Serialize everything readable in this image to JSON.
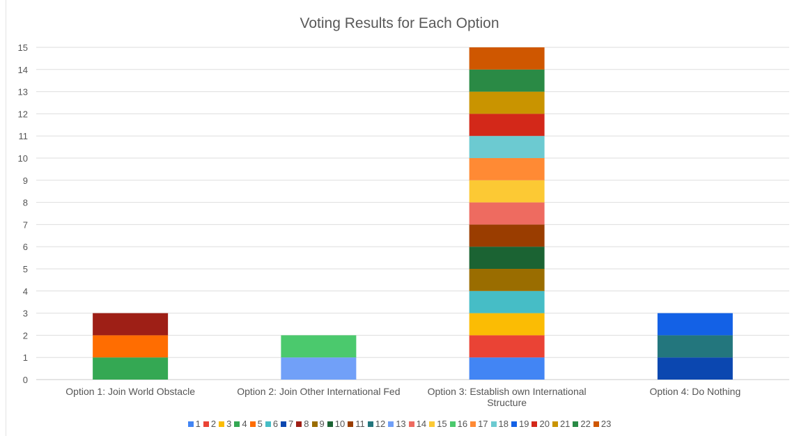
{
  "chart_data": {
    "type": "bar",
    "stacked": true,
    "title": "Voting Results for Each Option",
    "xlabel": "",
    "ylabel": "",
    "ylim": [
      0,
      15
    ],
    "yticks": [
      0,
      1,
      2,
      3,
      4,
      5,
      6,
      7,
      8,
      9,
      10,
      11,
      12,
      13,
      14,
      15
    ],
    "grid": true,
    "legend_position": "bottom",
    "categories": [
      [
        "Option 1:  Join World Obstacle"
      ],
      [
        "Option 2: Join Other International Fed"
      ],
      [
        "Option 3:  Establish own International",
        "Structure"
      ],
      [
        "Option 4:  Do Nothing"
      ]
    ],
    "series": [
      {
        "name": "1",
        "color": "#4285f4",
        "values": [
          0,
          0,
          1,
          0
        ]
      },
      {
        "name": "2",
        "color": "#ea4335",
        "values": [
          0,
          0,
          1,
          0
        ]
      },
      {
        "name": "3",
        "color": "#fbbc04",
        "values": [
          0,
          0,
          1,
          0
        ]
      },
      {
        "name": "4",
        "color": "#34a853",
        "values": [
          1,
          0,
          0,
          0
        ]
      },
      {
        "name": "5",
        "color": "#ff6d01",
        "values": [
          1,
          0,
          0,
          0
        ]
      },
      {
        "name": "6",
        "color": "#46bdc6",
        "values": [
          0,
          0,
          1,
          0
        ]
      },
      {
        "name": "7",
        "color": "#0b47b0",
        "values": [
          0,
          0,
          0,
          1
        ]
      },
      {
        "name": "8",
        "color": "#9e1f16",
        "values": [
          1,
          0,
          0,
          0
        ]
      },
      {
        "name": "9",
        "color": "#9a6d00",
        "values": [
          0,
          0,
          1,
          0
        ]
      },
      {
        "name": "10",
        "color": "#1b6333",
        "values": [
          0,
          0,
          1,
          0
        ]
      },
      {
        "name": "11",
        "color": "#9a3d00",
        "values": [
          0,
          0,
          1,
          0
        ]
      },
      {
        "name": "12",
        "color": "#23767d",
        "values": [
          0,
          0,
          0,
          1
        ]
      },
      {
        "name": "13",
        "color": "#71a0f8",
        "values": [
          0,
          1,
          0,
          0
        ]
      },
      {
        "name": "14",
        "color": "#ee6b60",
        "values": [
          0,
          0,
          1,
          0
        ]
      },
      {
        "name": "15",
        "color": "#fcc934",
        "values": [
          0,
          0,
          1,
          0
        ]
      },
      {
        "name": "16",
        "color": "#4bc96d",
        "values": [
          0,
          1,
          0,
          0
        ]
      },
      {
        "name": "17",
        "color": "#ff8a34",
        "values": [
          0,
          0,
          1,
          0
        ]
      },
      {
        "name": "18",
        "color": "#6ccad1",
        "values": [
          0,
          0,
          1,
          0
        ]
      },
      {
        "name": "19",
        "color": "#1361e6",
        "values": [
          0,
          0,
          0,
          1
        ]
      },
      {
        "name": "20",
        "color": "#d32819",
        "values": [
          0,
          0,
          1,
          0
        ]
      },
      {
        "name": "21",
        "color": "#c99400",
        "values": [
          0,
          0,
          1,
          0
        ]
      },
      {
        "name": "22",
        "color": "#2a8a45",
        "values": [
          0,
          0,
          1,
          0
        ]
      },
      {
        "name": "23",
        "color": "#cf5700",
        "values": [
          0,
          0,
          1,
          0
        ]
      }
    ]
  }
}
